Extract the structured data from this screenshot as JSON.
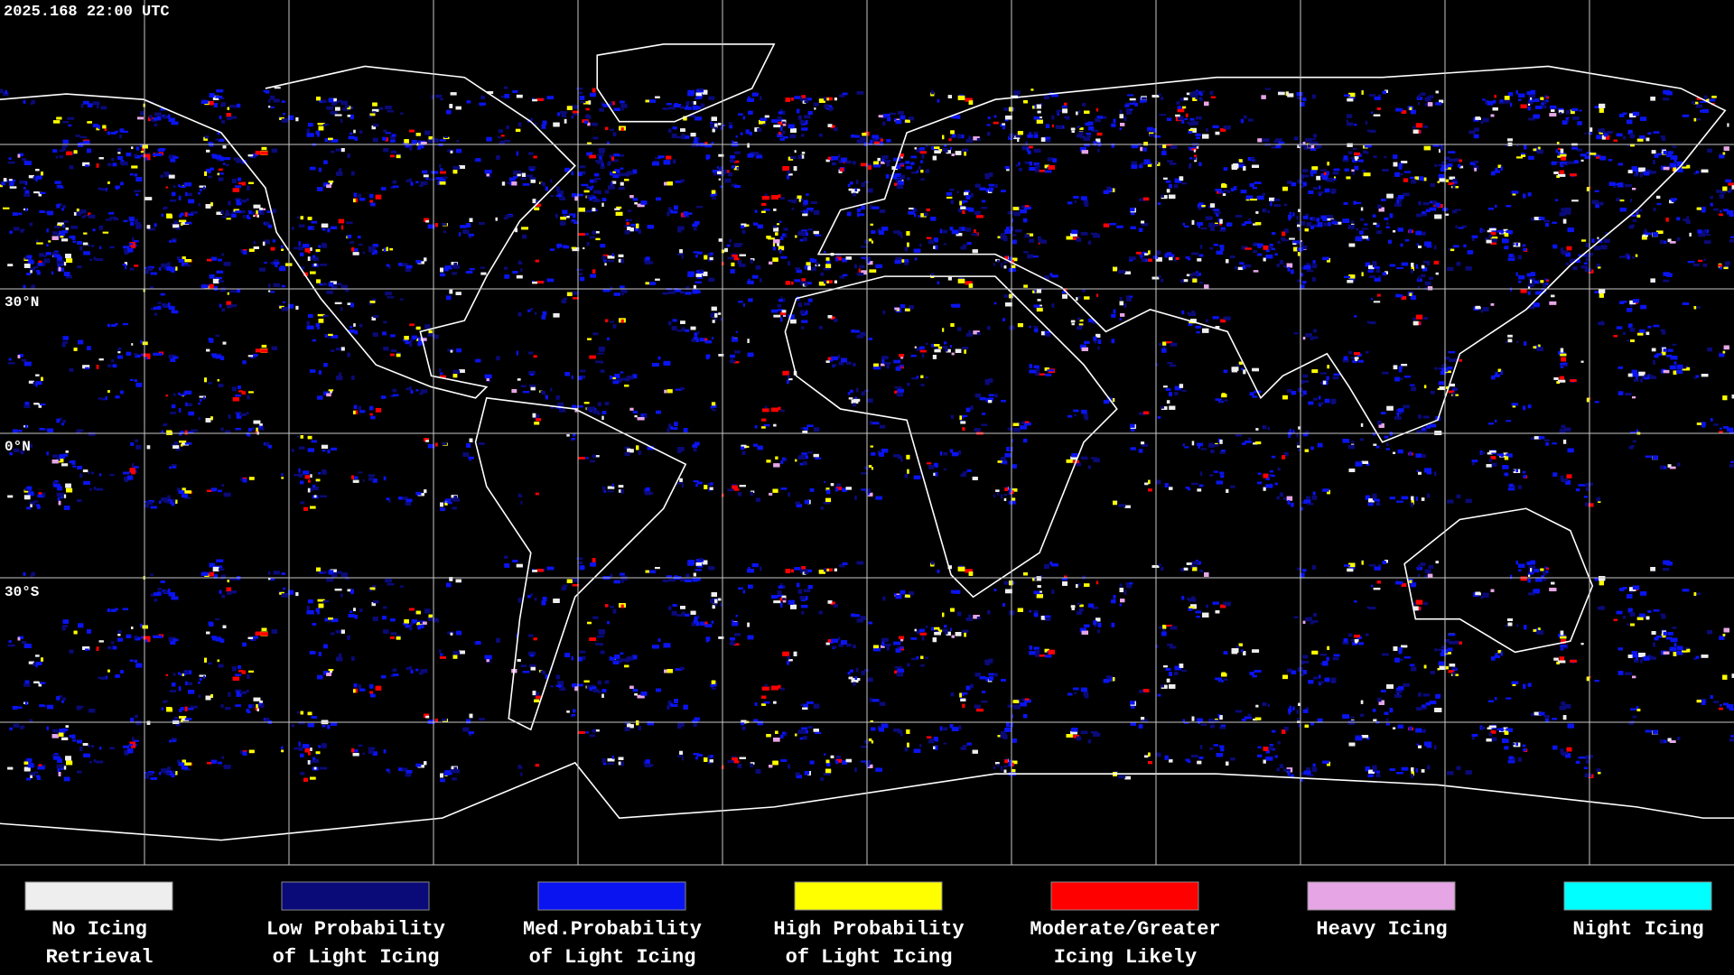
{
  "header": {
    "timestamp": "2025.168 22:00 UTC"
  },
  "map": {
    "latitude_labels": [
      "30°N",
      "0°N",
      "30°S"
    ]
  },
  "legend": {
    "items": [
      {
        "label": [
          "No Icing",
          "Retrieval"
        ],
        "color": "#eeeeee"
      },
      {
        "label": [
          "Low Probability",
          "of Light Icing"
        ],
        "color": "#0a0a78"
      },
      {
        "label": [
          "Med.Probability",
          "of Light Icing"
        ],
        "color": "#0a14f0"
      },
      {
        "label": [
          "High Probability",
          "of Light Icing"
        ],
        "color": "#ffff00"
      },
      {
        "label": [
          "Moderate/Greater",
          "Icing Likely"
        ],
        "color": "#ff0000"
      },
      {
        "label": [
          "Heavy Icing"
        ],
        "color": "#e6a6e6"
      },
      {
        "label": [
          "Night Icing"
        ],
        "color": "#00ffff"
      }
    ]
  }
}
